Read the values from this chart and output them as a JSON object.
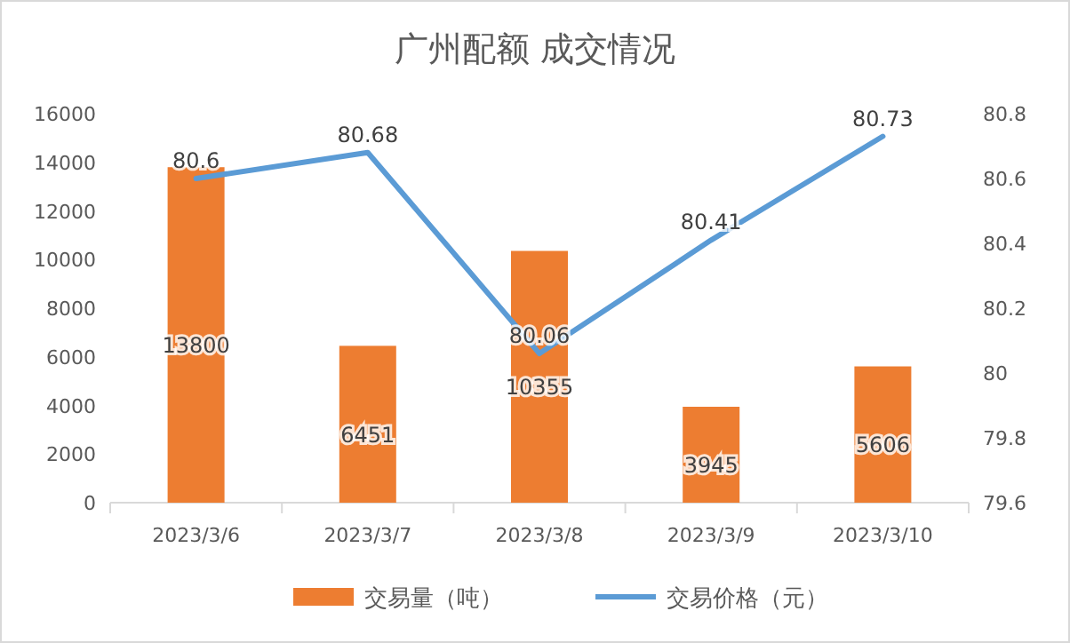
{
  "chart_data": {
    "type": "bar",
    "title": "广州配额 成交情况",
    "categories": [
      "2023/3/6",
      "2023/3/7",
      "2023/3/8",
      "2023/3/9",
      "2023/3/10"
    ],
    "series": [
      {
        "name": "交易量（吨）",
        "color": "#ed7d31",
        "values": [
          13800,
          6451,
          10355,
          3945,
          5606
        ]
      },
      {
        "name": "交易价格（元）",
        "type": "line",
        "axis": "y2",
        "color": "#5b9bd5",
        "values": [
          80.6,
          80.68,
          80.06,
          80.41,
          80.73
        ]
      }
    ],
    "ylim": [
      0,
      16000
    ],
    "yticks": [
      0,
      2000,
      4000,
      6000,
      8000,
      10000,
      12000,
      14000,
      16000
    ],
    "y2lim": [
      79.6,
      80.8
    ],
    "y2ticks": [
      79.6,
      79.8,
      80,
      80.2,
      80.4,
      80.6,
      80.8
    ],
    "data_labels": true,
    "legend": "bottom",
    "grid": false,
    "marker": "none",
    "line_style": "solid"
  }
}
